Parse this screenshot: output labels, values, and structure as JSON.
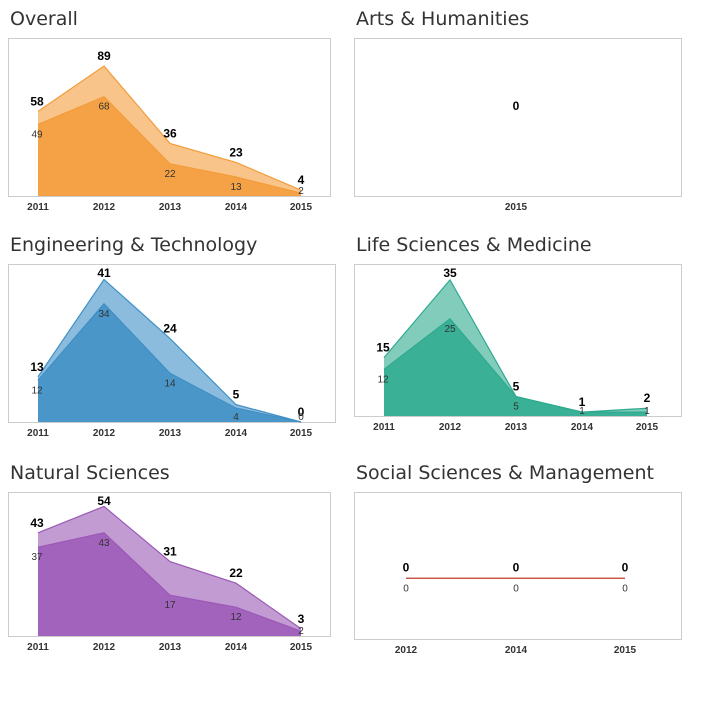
{
  "chart_data": [
    {
      "type": "area",
      "title": "Overall",
      "color": "#f39c3a",
      "x": [
        "2011",
        "2012",
        "2013",
        "2014",
        "2015"
      ],
      "series": [
        {
          "values": [
            58,
            89,
            36,
            23,
            4
          ]
        },
        {
          "values": [
            49,
            68,
            22,
            13,
            2
          ]
        }
      ],
      "ylim": [
        0,
        100
      ]
    },
    {
      "type": "area",
      "title": "Arts & Humanities",
      "color": "#f39c3a",
      "x": [
        "2015"
      ],
      "series": [
        {
          "values": [
            0
          ]
        }
      ],
      "ylim": [
        0,
        1
      ]
    },
    {
      "type": "area",
      "title": "Engineering & Technology",
      "color": "#3f8fc6",
      "x": [
        "2011",
        "2012",
        "2013",
        "2014",
        "2015"
      ],
      "series": [
        {
          "values": [
            13,
            41,
            24,
            5,
            0
          ]
        },
        {
          "values": [
            12,
            34,
            14,
            4,
            0
          ]
        }
      ],
      "ylim": [
        0,
        42
      ]
    },
    {
      "type": "area",
      "title": "Life Sciences & Medicine",
      "color": "#2eaa8f",
      "x": [
        "2011",
        "2012",
        "2013",
        "2014",
        "2015"
      ],
      "series": [
        {
          "values": [
            15,
            35,
            5,
            1,
            2
          ]
        },
        {
          "values": [
            12,
            25,
            5,
            1,
            1
          ]
        }
      ],
      "ylim": [
        0,
        36
      ]
    },
    {
      "type": "area",
      "title": "Natural Sciences",
      "color": "#9b59b6",
      "x": [
        "2011",
        "2012",
        "2013",
        "2014",
        "2015"
      ],
      "series": [
        {
          "values": [
            43,
            54,
            31,
            22,
            3
          ]
        },
        {
          "values": [
            37,
            43,
            17,
            12,
            2
          ]
        }
      ],
      "ylim": [
        0,
        55
      ]
    },
    {
      "type": "line",
      "title": "Social Sciences & Management",
      "color": "#c0392b",
      "x": [
        "2012",
        "2014",
        "2015"
      ],
      "series": [
        {
          "values": [
            0,
            0,
            0
          ]
        },
        {
          "values": [
            0,
            0,
            0
          ]
        }
      ],
      "ylim": [
        0,
        1
      ]
    }
  ]
}
